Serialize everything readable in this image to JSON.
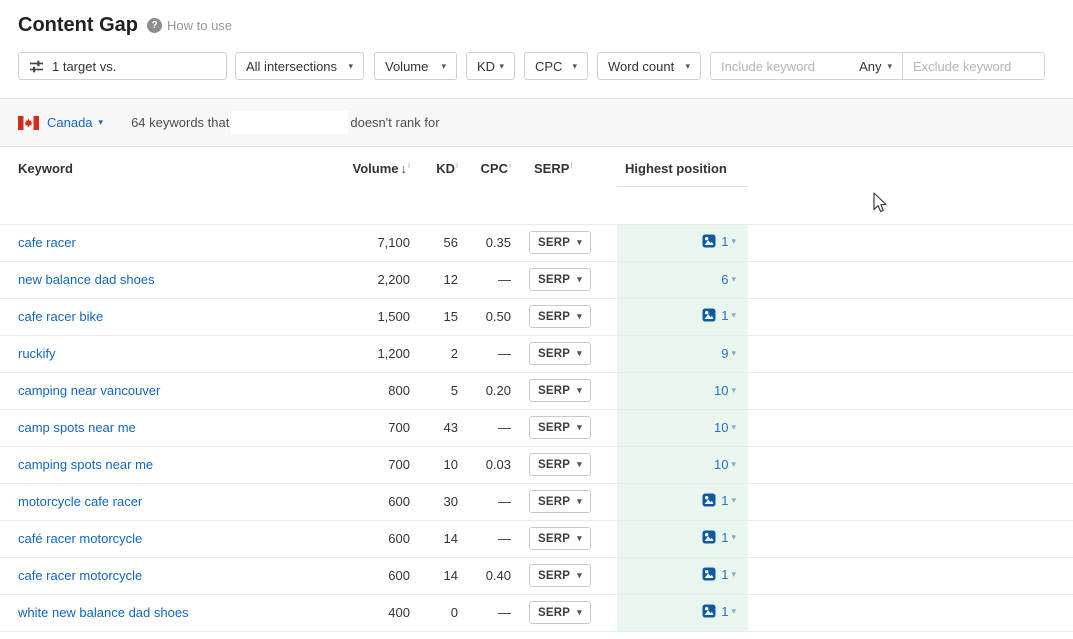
{
  "header": {
    "title": "Content Gap",
    "help_label": "How to use"
  },
  "filters": {
    "target_selector_label": "1 target vs.",
    "intersections_label": "All intersections",
    "volume_label": "Volume",
    "kd_label": "KD",
    "cpc_label": "CPC",
    "word_count_label": "Word count",
    "include_placeholder": "Include keyword",
    "include_mode_label": "Any",
    "exclude_placeholder": "Exclude keyword"
  },
  "summary_bar": {
    "country": "Canada",
    "text_before": "64 keywords that",
    "text_after": "doesn't rank for"
  },
  "icons": {
    "info": "i",
    "sort_desc": "↓",
    "caret_down": "▾"
  },
  "colors": {
    "link_blue": "#1266c0",
    "position_blue": "#2a6fc4",
    "highlight_green": "#e9f6ee",
    "bar_gray": "#f7f7f7",
    "thumbnail_icon_blue": "#0d59a9",
    "flag_red": "#d52b1e"
  },
  "table": {
    "columns": {
      "keyword": "Keyword",
      "volume": "Volume",
      "kd": "KD",
      "cpc": "CPC",
      "serp": "SERP",
      "highest_position": "Highest position"
    },
    "serp_button_label": "SERP",
    "rows": [
      {
        "keyword": "cafe racer",
        "volume": "7,100",
        "kd": "56",
        "cpc": "0.35",
        "position": "1",
        "thumbnail": true
      },
      {
        "keyword": "new balance dad shoes",
        "volume": "2,200",
        "kd": "12",
        "cpc": "—",
        "position": "6",
        "thumbnail": false
      },
      {
        "keyword": "cafe racer bike",
        "volume": "1,500",
        "kd": "15",
        "cpc": "0.50",
        "position": "1",
        "thumbnail": true
      },
      {
        "keyword": "ruckify",
        "volume": "1,200",
        "kd": "2",
        "cpc": "—",
        "position": "9",
        "thumbnail": false
      },
      {
        "keyword": "camping near vancouver",
        "volume": "800",
        "kd": "5",
        "cpc": "0.20",
        "position": "10",
        "thumbnail": false
      },
      {
        "keyword": "camp spots near me",
        "volume": "700",
        "kd": "43",
        "cpc": "—",
        "position": "10",
        "thumbnail": false
      },
      {
        "keyword": "camping spots near me",
        "volume": "700",
        "kd": "10",
        "cpc": "0.03",
        "position": "10",
        "thumbnail": false
      },
      {
        "keyword": "motorcycle cafe racer",
        "volume": "600",
        "kd": "30",
        "cpc": "—",
        "position": "1",
        "thumbnail": true
      },
      {
        "keyword": "café racer motorcycle",
        "volume": "600",
        "kd": "14",
        "cpc": "—",
        "position": "1",
        "thumbnail": true
      },
      {
        "keyword": "cafe racer motorcycle",
        "volume": "600",
        "kd": "14",
        "cpc": "0.40",
        "position": "1",
        "thumbnail": true
      },
      {
        "keyword": "white new balance dad shoes",
        "volume": "400",
        "kd": "0",
        "cpc": "—",
        "position": "1",
        "thumbnail": true
      }
    ]
  }
}
